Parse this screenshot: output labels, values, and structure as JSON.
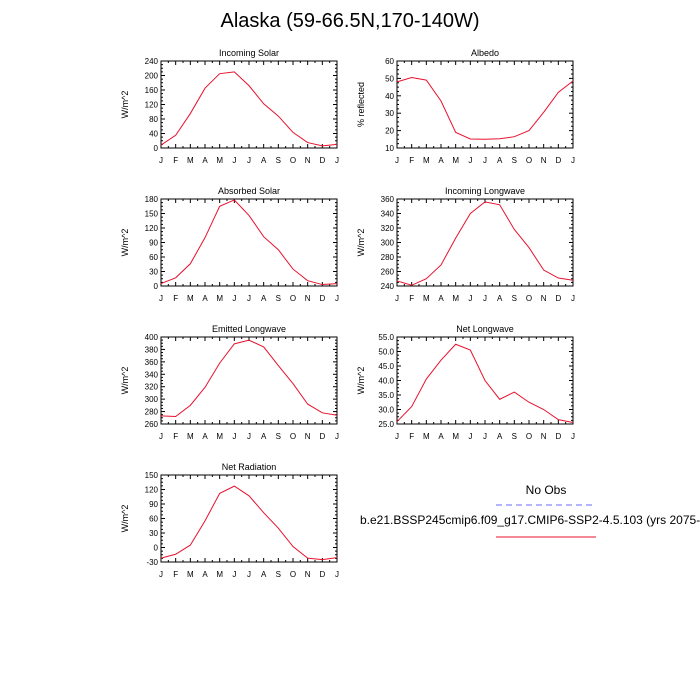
{
  "title": "Alaska (59-66.5N,170-140W)",
  "months": [
    "J",
    "F",
    "M",
    "A",
    "M",
    "J",
    "J",
    "A",
    "S",
    "O",
    "N",
    "D",
    "J"
  ],
  "legend": {
    "obs_label": "No Obs",
    "model_label": "b.e21.BSSP245cmip6.f09_g17.CMIP6-SSP2-4.5.103 (yrs 2075-",
    "obs_color": "#6b6bff",
    "model_color": "#e8112d"
  },
  "chart_data": [
    {
      "type": "line",
      "title": "Incoming Solar",
      "ylabel": "W/m^2",
      "ylim": [
        0,
        240
      ],
      "yticks": [
        "0",
        "40",
        "80",
        "120",
        "160",
        "200",
        "240"
      ],
      "series": [
        {
          "values": [
            8,
            35,
            95,
            165,
            205,
            210,
            172,
            122,
            88,
            43,
            15,
            6,
            10
          ]
        }
      ]
    },
    {
      "type": "line",
      "title": "Albedo",
      "ylabel": "% reflected",
      "ylim": [
        10,
        60
      ],
      "yticks": [
        "10",
        "20",
        "30",
        "40",
        "50",
        "60"
      ],
      "series": [
        {
          "values": [
            48,
            50.5,
            49,
            37,
            19,
            15.2,
            15,
            15.3,
            16.5,
            20,
            30.5,
            42,
            48.5
          ]
        }
      ]
    },
    {
      "type": "line",
      "title": "Absorbed Solar",
      "ylabel": "W/m^2",
      "ylim": [
        0,
        180
      ],
      "yticks": [
        "0",
        "30",
        "60",
        "90",
        "120",
        "150",
        "180"
      ],
      "series": [
        {
          "values": [
            5,
            17,
            46,
            100,
            165,
            178,
            146,
            102,
            75,
            35,
            11,
            3,
            5
          ]
        }
      ]
    },
    {
      "type": "line",
      "title": "Incoming Longwave",
      "ylabel": "W/m^2",
      "ylim": [
        240,
        360
      ],
      "yticks": [
        "240",
        "260",
        "280",
        "300",
        "320",
        "340",
        "360"
      ],
      "series": [
        {
          "values": [
            247,
            241,
            250,
            269,
            306,
            340,
            356,
            352,
            318,
            293,
            262,
            251,
            248
          ]
        }
      ]
    },
    {
      "type": "line",
      "title": "Emitted Longwave",
      "ylabel": "W/m^2",
      "ylim": [
        260,
        400
      ],
      "yticks": [
        "260",
        "280",
        "300",
        "320",
        "340",
        "360",
        "380",
        "400"
      ],
      "series": [
        {
          "values": [
            273,
            272,
            290,
            319,
            358,
            389,
            395,
            384,
            354,
            325,
            292,
            278,
            274
          ]
        }
      ]
    },
    {
      "type": "line",
      "title": "Net Longwave",
      "ylabel": "W/m^2",
      "ylim": [
        25,
        55
      ],
      "yticks": [
        "25.0",
        "30.0",
        "35.0",
        "40.0",
        "45.0",
        "50.0",
        "55.0"
      ],
      "series": [
        {
          "values": [
            25.8,
            31,
            40.5,
            47,
            52.5,
            50.5,
            40,
            33.5,
            36,
            32.5,
            30,
            26.5,
            25.5
          ]
        }
      ]
    },
    {
      "type": "line",
      "title": "Net Radiation",
      "ylabel": "W/m^2",
      "ylim": [
        -30,
        150
      ],
      "yticks": [
        "-30",
        "0",
        "30",
        "60",
        "90",
        "120",
        "150"
      ],
      "series": [
        {
          "values": [
            -22,
            -14,
            5,
            55,
            112,
            127,
            107,
            72,
            40,
            2,
            -22,
            -25,
            -21
          ]
        }
      ]
    }
  ]
}
